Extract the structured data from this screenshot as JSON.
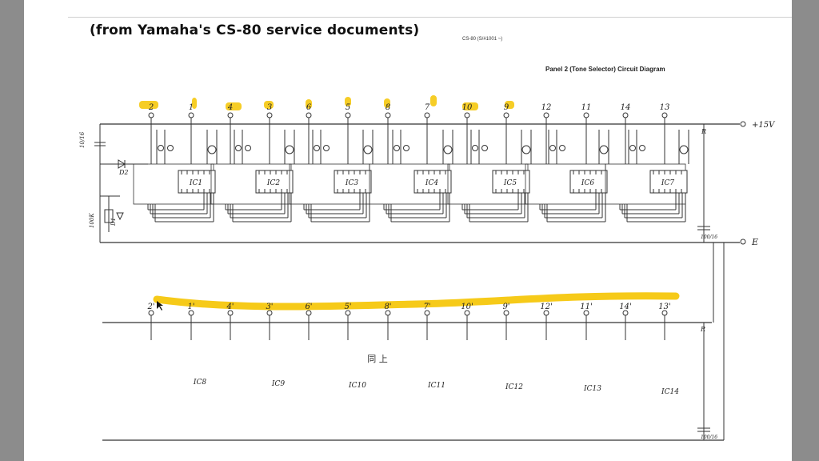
{
  "caption": "(from Yamaha's CS-80 service documents)",
  "doc_number": "CS-80 (S/#1001 ~)",
  "diagram_title": "Panel 2 (Tone Selector) Circuit Diagram",
  "colors": {
    "highlight": "#f5c400",
    "ink": "#333333",
    "page": "#ffffff",
    "frame": "#8c8c8c"
  },
  "top_row": {
    "pin_labels": [
      "2",
      "1",
      "4",
      "3",
      "6",
      "5",
      "8",
      "7",
      "10",
      "9",
      "12",
      "11",
      "14",
      "13"
    ],
    "highlighted_count": 10,
    "ic_labels": [
      "IC1",
      "IC2",
      "IC3",
      "IC4",
      "IC5",
      "IC6",
      "IC7"
    ],
    "supply_label": "+15V",
    "ground_label": "E",
    "resistor_label": "R",
    "cap_label": "100/16",
    "diode_label": "D2",
    "diode2_label": "D1",
    "left_cap_label": "10/16",
    "left_res_label": "100K"
  },
  "bottom_row": {
    "pin_labels": [
      "2'",
      "1'",
      "4'",
      "3'",
      "6'",
      "5'",
      "8'",
      "7'",
      "10'",
      "9'",
      "12'",
      "11'",
      "14'",
      "13'"
    ],
    "ic_labels": [
      "IC8",
      "IC9",
      "IC10",
      "IC11",
      "IC12",
      "IC13",
      "IC14"
    ],
    "center_note": "同 上",
    "resistor_label": "R",
    "cap_label": "100/16"
  }
}
